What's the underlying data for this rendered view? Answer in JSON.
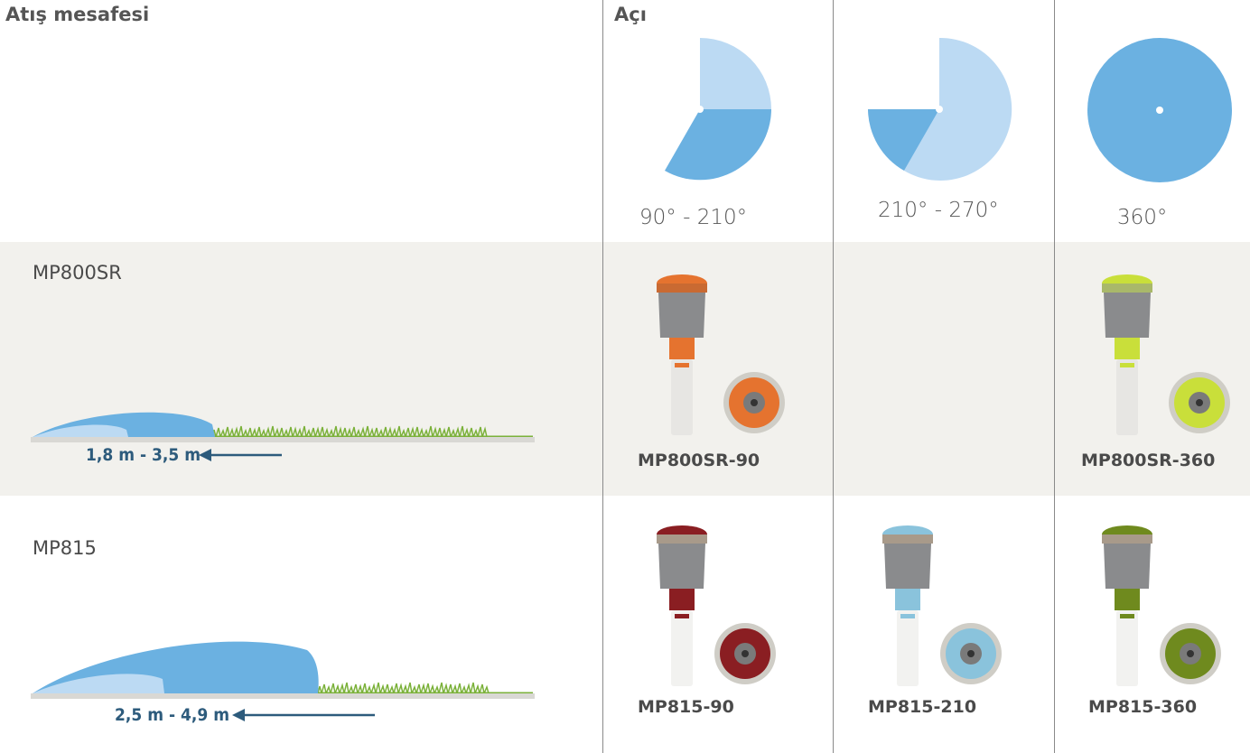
{
  "header": {
    "throw_label": "Atış mesafesi",
    "angle_label": "Açı"
  },
  "angles": [
    {
      "label": "90° - 210°"
    },
    {
      "label": "210° - 270°"
    },
    {
      "label": "360°"
    }
  ],
  "rows": [
    {
      "series": "MP800SR",
      "distance": "1,8 m - 3,5 m",
      "models": [
        "MP800SR-90",
        "",
        "MP800SR-360"
      ]
    },
    {
      "series": "MP815",
      "distance": "2,5 m - 4,9 m",
      "models": [
        "MP815-90",
        "MP815-210",
        "MP815-360"
      ]
    }
  ],
  "colors": {
    "band": "#f2f1ed",
    "pie_dark": "#6bb1e1",
    "pie_light": "#bcdaf3",
    "distance_text": "#2d5b7c",
    "grass": "#7bb13a",
    "nozzle_orange": "#e5732f",
    "nozzle_lime": "#c9df3a",
    "nozzle_red": "#8a1e22",
    "nozzle_blue": "#8ac3dc",
    "nozzle_olive": "#6f8a1e"
  }
}
